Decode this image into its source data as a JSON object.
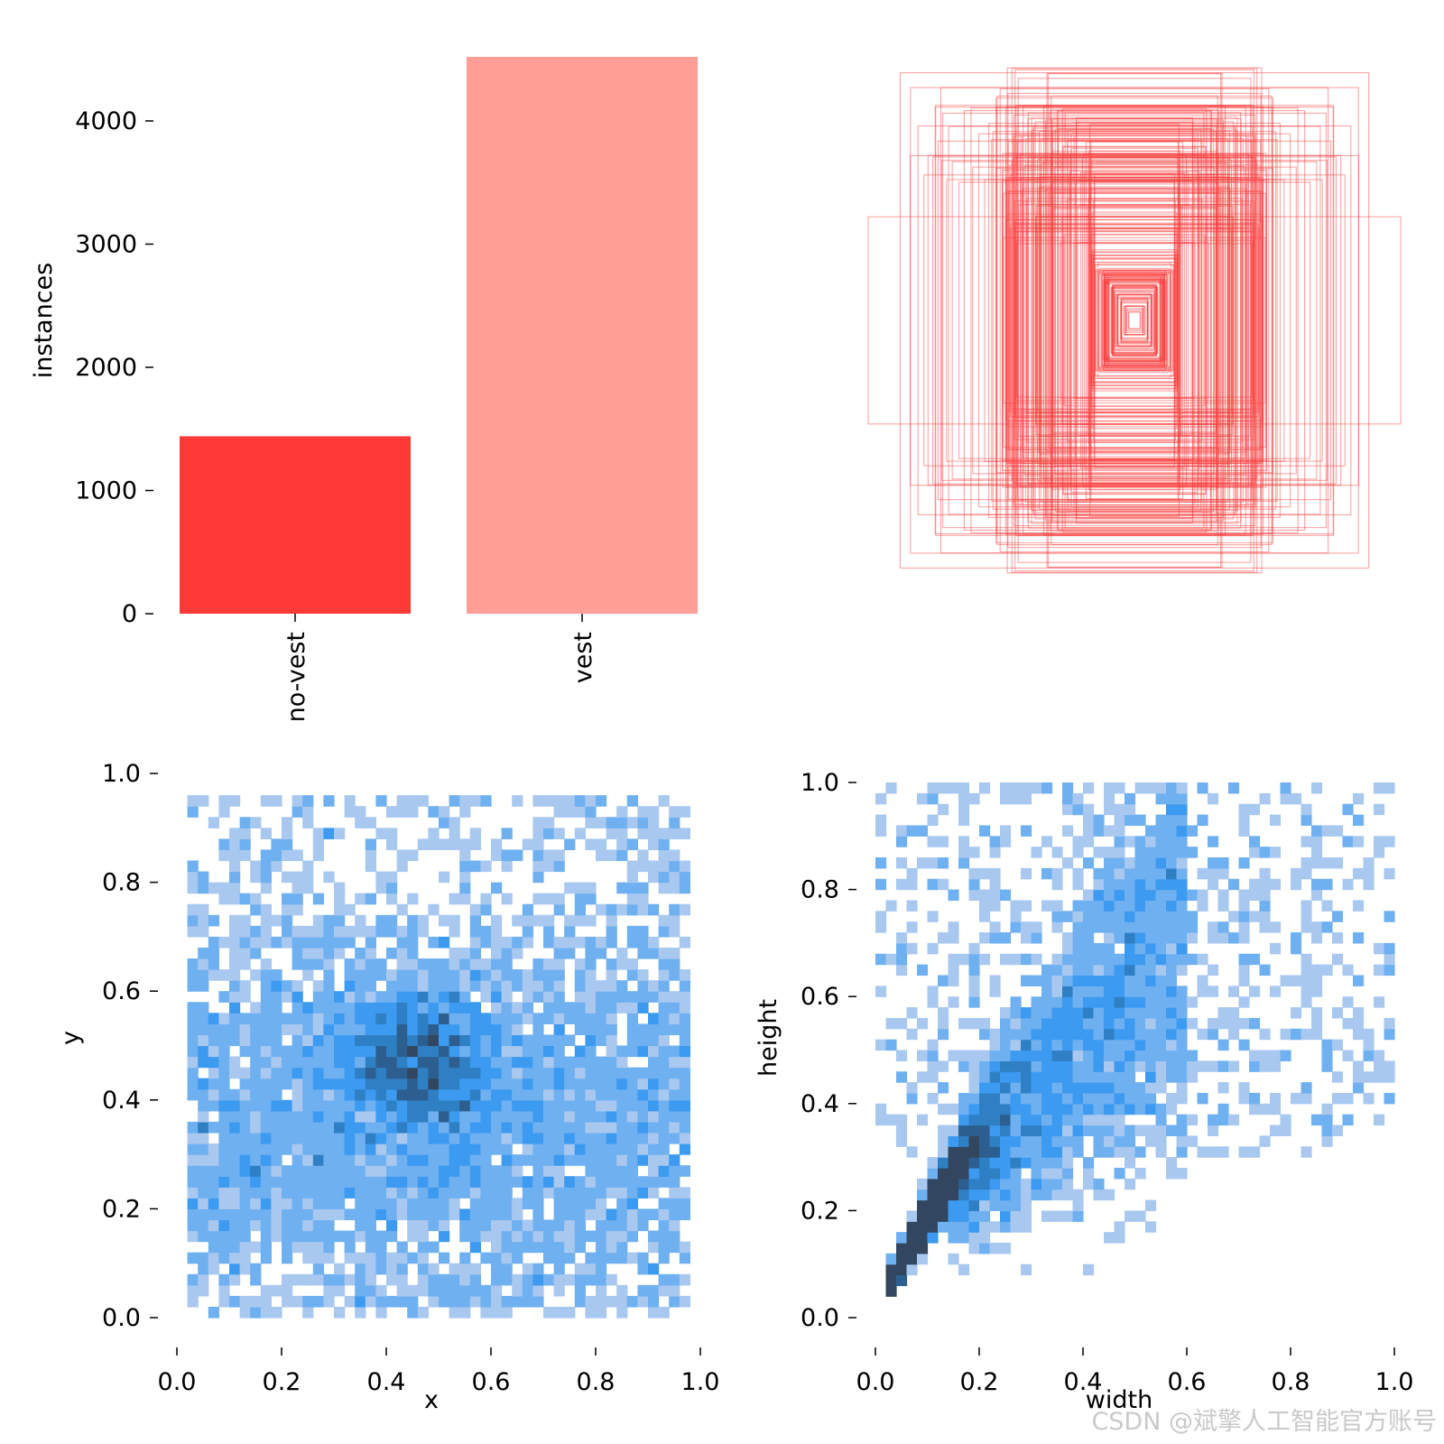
{
  "colors": {
    "no_vest": "#ff3838",
    "vest": "#ff9d97",
    "box_stroke": "#ff3838",
    "hist_light": "#a8c8f0",
    "hist_mid": "#3c9af0",
    "hist_dark": "#32475f"
  },
  "chart_data": [
    {
      "type": "bar",
      "categories": [
        "no-vest",
        "vest"
      ],
      "values": [
        1440,
        4520
      ],
      "ylabel": "instances",
      "yticks": [
        "0",
        "1000",
        "2000",
        "3000",
        "4000"
      ],
      "ylim": [
        0,
        4520
      ]
    },
    {
      "type": "other",
      "description_kind": "overlaid bounding boxes",
      "center": [
        0.5,
        0.5
      ]
    },
    {
      "type": "heatmap",
      "xlabel": "x",
      "ylabel": "y",
      "xlim": [
        0,
        1
      ],
      "ylim": [
        0,
        1
      ],
      "xticks": [
        "0.0",
        "0.2",
        "0.4",
        "0.6",
        "0.8",
        "1.0"
      ],
      "yticks": [
        "0.0",
        "0.2",
        "0.4",
        "0.6",
        "0.8",
        "1.0"
      ],
      "density_peak": [
        0.45,
        0.45
      ]
    },
    {
      "type": "heatmap",
      "xlabel": "width",
      "ylabel": "height",
      "xlim": [
        0,
        1
      ],
      "ylim": [
        0,
        1
      ],
      "xticks": [
        "0.0",
        "0.2",
        "0.4",
        "0.6",
        "0.8",
        "1.0"
      ],
      "yticks": [
        "0.0",
        "0.2",
        "0.4",
        "0.6",
        "0.8",
        "1.0"
      ],
      "density_peak": [
        0.1,
        0.2
      ]
    }
  ],
  "watermark": "CSDN @斌擎人工智能官方账号"
}
